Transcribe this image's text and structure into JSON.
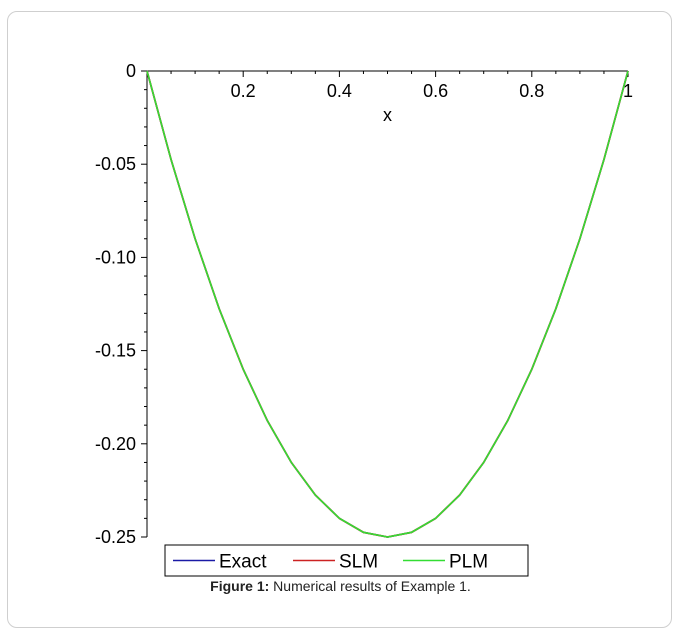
{
  "caption": {
    "label": "Figure 1:",
    "text": " Numerical results of Example 1."
  },
  "chart_data": {
    "type": "line",
    "xlabel": "x",
    "ylabel": "",
    "xlim": [
      0,
      1
    ],
    "ylim": [
      -0.25,
      0
    ],
    "xticks": [
      "0.2",
      "0.4",
      "0.6",
      "0.8",
      "1"
    ],
    "yticks": [
      "0",
      "-0.05",
      "-0.10",
      "-0.15",
      "-0.20",
      "-0.25"
    ],
    "legend_position": "bottom-center",
    "x": [
      0,
      0.05,
      0.1,
      0.15,
      0.2,
      0.25,
      0.3,
      0.35,
      0.4,
      0.45,
      0.5,
      0.55,
      0.6,
      0.65,
      0.7,
      0.75,
      0.8,
      0.85,
      0.9,
      0.95,
      1
    ],
    "series": [
      {
        "name": "Exact",
        "color": "#1a1aa6",
        "values": [
          0,
          -0.0475,
          -0.09,
          -0.1275,
          -0.16,
          -0.1875,
          -0.21,
          -0.2275,
          -0.24,
          -0.2475,
          -0.25,
          -0.2475,
          -0.24,
          -0.2275,
          -0.21,
          -0.1875,
          -0.16,
          -0.1275,
          -0.09,
          -0.0475,
          0
        ]
      },
      {
        "name": "SLM",
        "color": "#cc2222",
        "values": [
          0,
          -0.0475,
          -0.09,
          -0.1275,
          -0.16,
          -0.1875,
          -0.21,
          -0.2275,
          -0.24,
          -0.2475,
          -0.25,
          -0.2475,
          -0.24,
          -0.2275,
          -0.21,
          -0.1875,
          -0.16,
          -0.1275,
          -0.09,
          -0.0475,
          0
        ]
      },
      {
        "name": "PLM",
        "color": "#33dd33",
        "values": [
          0,
          -0.0475,
          -0.09,
          -0.1275,
          -0.16,
          -0.1875,
          -0.21,
          -0.2275,
          -0.24,
          -0.2475,
          -0.25,
          -0.2475,
          -0.24,
          -0.2275,
          -0.21,
          -0.1875,
          -0.16,
          -0.1275,
          -0.09,
          -0.0475,
          0
        ]
      }
    ]
  }
}
